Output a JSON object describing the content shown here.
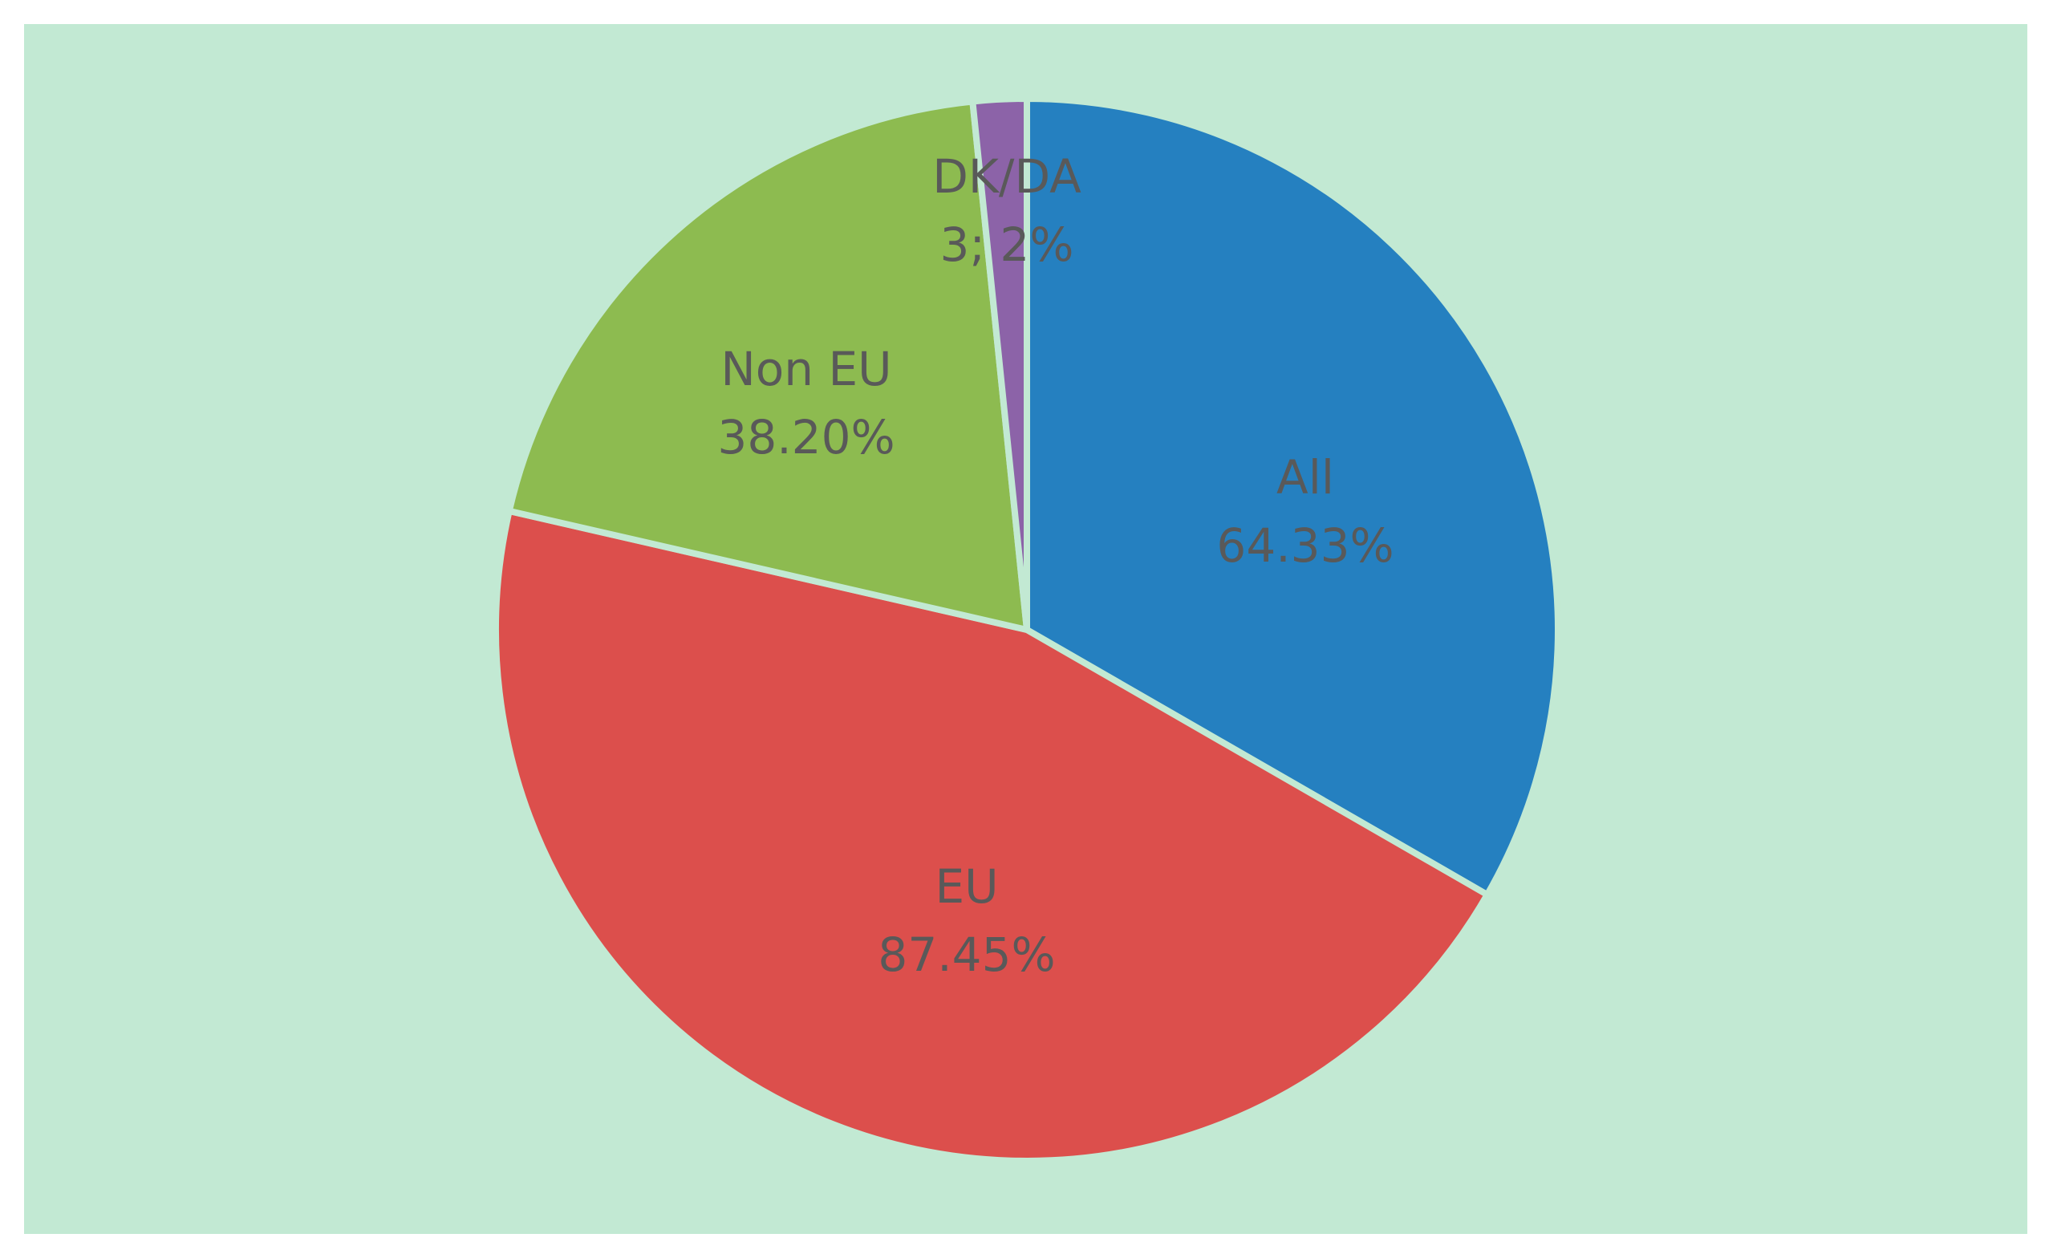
{
  "colors": {
    "plot_background": "#c2e9d3",
    "label_text": "#595959"
  },
  "chart_data": {
    "type": "pie",
    "title": "",
    "legend": "none",
    "slices": [
      {
        "name": "All",
        "label_value": "64.33%",
        "share": 0.3331,
        "color": "#2580c0"
      },
      {
        "name": "EU",
        "label_value": "87.45%",
        "share": 0.4528,
        "color": "#dc4f4c"
      },
      {
        "name": "Non EU",
        "label_value": "38.20%",
        "share": 0.1978,
        "color": "#8dbb50"
      },
      {
        "name": "DK/DA",
        "label_value": "3; 2%",
        "share": 0.0163,
        "color": "#8c63a8"
      }
    ]
  }
}
